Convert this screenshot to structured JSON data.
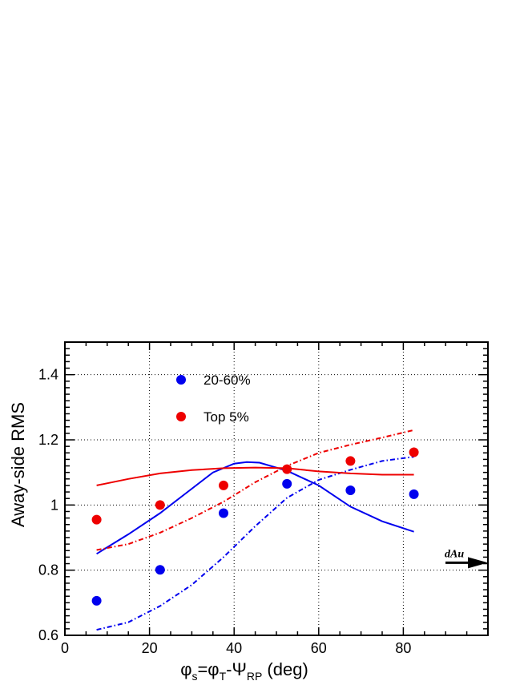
{
  "chart_data": {
    "type": "scatter",
    "xlabel": "φ",
    "xlabel_sub1": "s",
    "xlabel_mid": "=φ",
    "xlabel_sub2": "T",
    "xlabel_mid2": "-Ψ",
    "xlabel_sub3": "RP",
    "xlabel_tail": " (deg)",
    "ylabel": "Away-side RMS",
    "xlim": [
      0,
      100
    ],
    "ylim": [
      0.6,
      1.5
    ],
    "x_ticks": [
      0,
      20,
      40,
      60,
      80
    ],
    "y_ticks": [
      0.6,
      0.8,
      1,
      1.2,
      1.4
    ],
    "x_tick_labels": [
      "0",
      "20",
      "40",
      "60",
      "80"
    ],
    "y_tick_labels": [
      "0.6",
      "0.8",
      "1",
      "1.2",
      "1.4"
    ],
    "grid": true,
    "legend_position": "top-left",
    "series": [
      {
        "name": "20-60%",
        "color": "#0000ee",
        "points": [
          [
            7.5,
            0.706
          ],
          [
            22.5,
            0.801
          ],
          [
            37.5,
            0.975
          ],
          [
            52.5,
            1.065
          ],
          [
            67.5,
            1.045
          ],
          [
            82.5,
            1.033
          ]
        ]
      },
      {
        "name": "Top 5%",
        "color": "#ee0000",
        "points": [
          [
            7.5,
            0.955
          ],
          [
            22.5,
            1.0
          ],
          [
            37.5,
            1.06
          ],
          [
            52.5,
            1.11
          ],
          [
            67.5,
            1.135
          ],
          [
            82.5,
            1.162
          ]
        ]
      }
    ],
    "curves": [
      {
        "color": "#0000ee",
        "style": "solid",
        "points": [
          [
            7.5,
            0.85
          ],
          [
            15,
            0.91
          ],
          [
            22.5,
            0.975
          ],
          [
            30,
            1.05
          ],
          [
            35,
            1.1
          ],
          [
            40,
            1.127
          ],
          [
            43,
            1.132
          ],
          [
            46,
            1.13
          ],
          [
            52.5,
            1.105
          ],
          [
            60,
            1.06
          ],
          [
            67.5,
            0.995
          ],
          [
            75,
            0.95
          ],
          [
            82.5,
            0.918
          ]
        ]
      },
      {
        "color": "#0000ee",
        "style": "dash-dot",
        "points": [
          [
            7.5,
            0.617
          ],
          [
            15,
            0.64
          ],
          [
            22.5,
            0.69
          ],
          [
            30,
            0.755
          ],
          [
            37.5,
            0.84
          ],
          [
            45,
            0.935
          ],
          [
            52.5,
            1.022
          ],
          [
            60,
            1.077
          ],
          [
            67.5,
            1.108
          ],
          [
            75,
            1.135
          ],
          [
            82.5,
            1.148
          ]
        ]
      },
      {
        "color": "#ee0000",
        "style": "solid",
        "points": [
          [
            7.5,
            1.06
          ],
          [
            15,
            1.08
          ],
          [
            22.5,
            1.097
          ],
          [
            30,
            1.107
          ],
          [
            37.5,
            1.113
          ],
          [
            45,
            1.115
          ],
          [
            52.5,
            1.113
          ],
          [
            60,
            1.103
          ],
          [
            67.5,
            1.097
          ],
          [
            75,
            1.093
          ],
          [
            82.5,
            1.093
          ]
        ]
      },
      {
        "color": "#ee0000",
        "style": "dash-dot",
        "points": [
          [
            7.5,
            0.862
          ],
          [
            15,
            0.88
          ],
          [
            22.5,
            0.915
          ],
          [
            30,
            0.96
          ],
          [
            37.5,
            1.01
          ],
          [
            45,
            1.07
          ],
          [
            52.5,
            1.12
          ],
          [
            60,
            1.16
          ],
          [
            67.5,
            1.185
          ],
          [
            75,
            1.207
          ],
          [
            82.5,
            1.23
          ]
        ]
      }
    ],
    "annotation": {
      "text": "dAu",
      "y_value": 0.808,
      "arrow": "right"
    }
  }
}
